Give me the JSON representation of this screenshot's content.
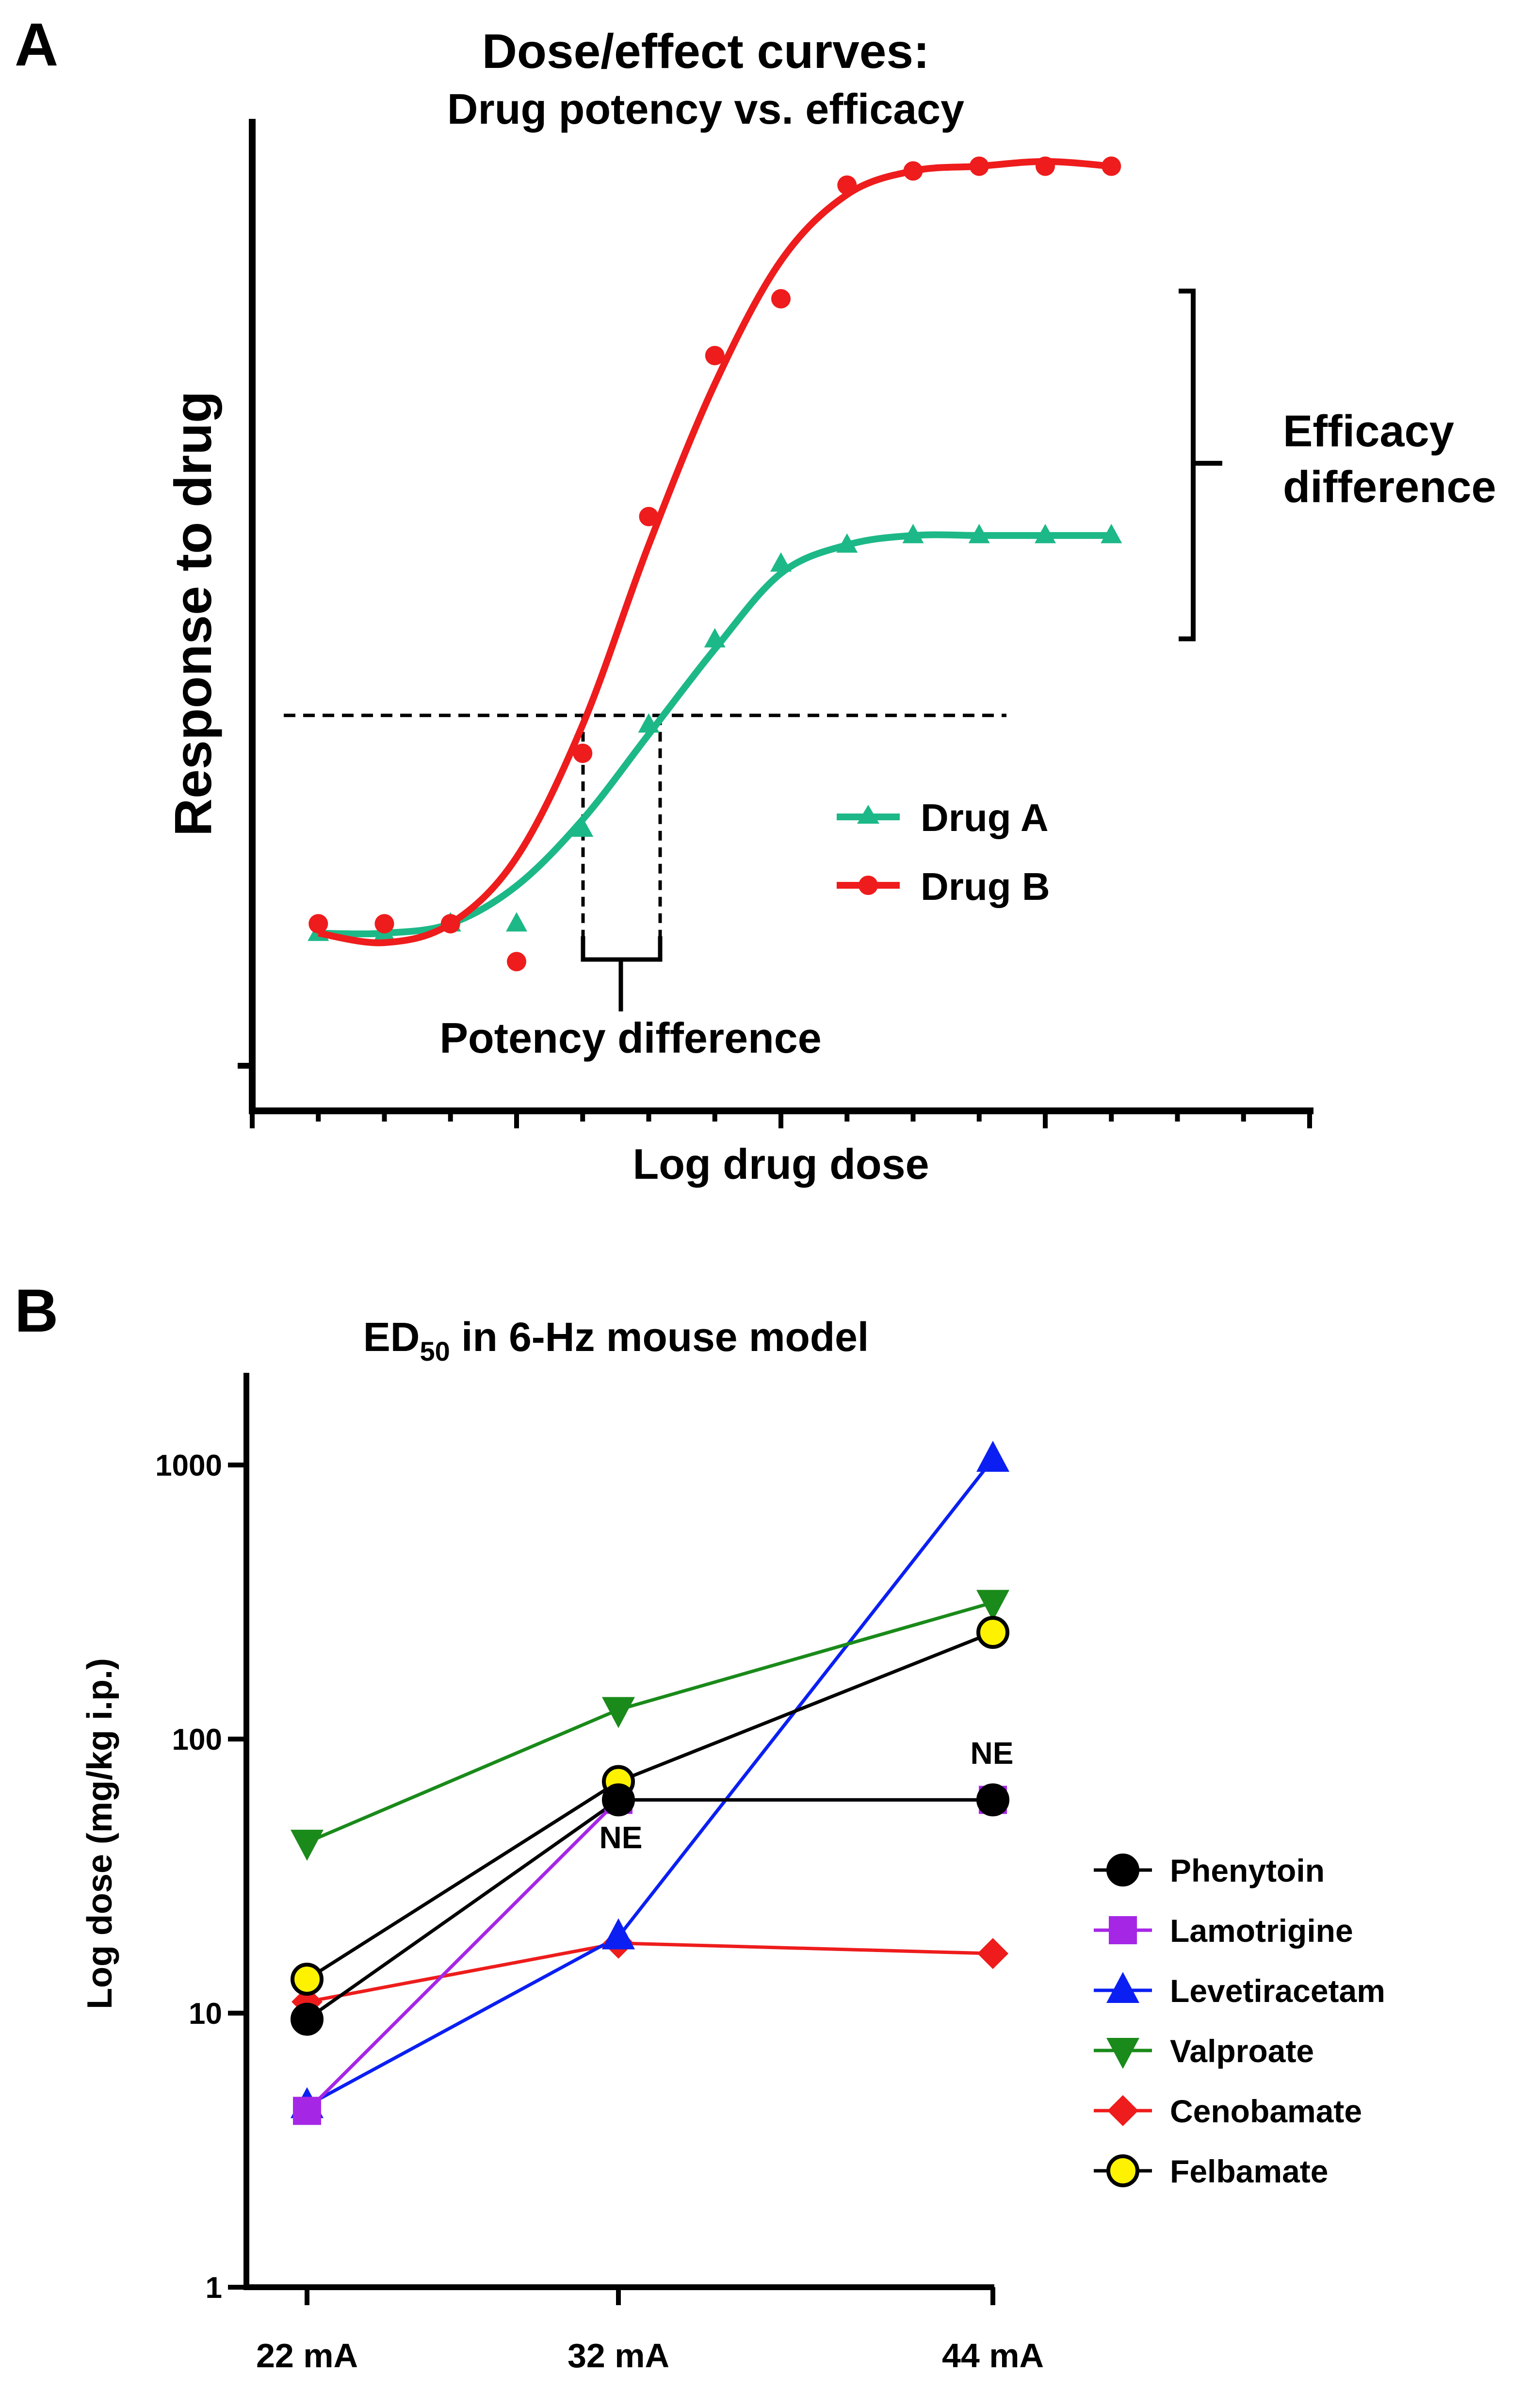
{
  "panel_a": {
    "label": "A",
    "title": "Dose/effect curves:",
    "subtitle": "Drug potency vs. efficacy",
    "annotations": {
      "efficacy_line1": "Efficacy",
      "efficacy_line2": "difference",
      "potency": "Potency difference"
    }
  },
  "panel_b": {
    "label": "B",
    "title_main": "ED",
    "title_sub": "50",
    "title_rest": " in 6-Hz mouse model",
    "ne_label": "NE"
  },
  "chart_data": [
    {
      "type": "line",
      "title": "Dose/effect curves: Drug potency vs. efficacy",
      "xlabel": "Log drug dose",
      "ylabel": "Response to drug",
      "x": [
        1,
        2,
        3,
        4,
        5,
        6,
        7,
        8,
        9,
        10,
        11,
        12,
        13
      ],
      "xlim": [
        0,
        16
      ],
      "ylim": [
        0,
        100
      ],
      "threshold_y": 37,
      "series": [
        {
          "name": "Drug A",
          "color": "#1db887",
          "marker": "triangle",
          "points": [
            14,
            14,
            15,
            15,
            25,
            36,
            45,
            53,
            55,
            56,
            56,
            56,
            56
          ],
          "curve": [
            14,
            14,
            15,
            19,
            26,
            35,
            44,
            52,
            55,
            56,
            56,
            56,
            56
          ]
        },
        {
          "name": "Drug B",
          "color": "#ee1c1c",
          "marker": "circle",
          "points": [
            15,
            15,
            15,
            11,
            33,
            58,
            75,
            81,
            93,
            94.5,
            95,
            95,
            95
          ],
          "curve": [
            14,
            13,
            15,
            22,
            36,
            55,
            72,
            85,
            92,
            94.5,
            95,
            95.5,
            95
          ]
        }
      ]
    },
    {
      "type": "line",
      "title": "ED50 in 6-Hz mouse model",
      "ylabel": "Log dose (mg/kg i.p.)",
      "yscale": "log",
      "ylim": [
        1,
        2000
      ],
      "yticks": [
        "1",
        "10",
        "100",
        "1000"
      ],
      "categories": [
        "22 mA",
        "32 mA",
        "44 mA"
      ],
      "series": [
        {
          "name": "Phenytoin",
          "color": "#000000",
          "marker": "circle",
          "values": [
            9.5,
            60,
            60
          ],
          "ne": [
            false,
            true,
            true
          ]
        },
        {
          "name": "Lamotrigine",
          "color": "#a626e6",
          "marker": "square",
          "values": [
            4.4,
            60,
            60
          ]
        },
        {
          "name": "Levetiracetam",
          "color": "#0b1ff2",
          "marker": "triangle-up",
          "values": [
            4.6,
            19,
            1050
          ]
        },
        {
          "name": "Valproate",
          "color": "#1a8a1a",
          "marker": "triangle-down",
          "values": [
            42,
            128,
            315
          ]
        },
        {
          "name": "Cenobamate",
          "color": "#ee1c1c",
          "marker": "diamond",
          "values": [
            11,
            18,
            16.5
          ]
        },
        {
          "name": "Felbamate",
          "color": "#000000",
          "marker": "circle",
          "fill": "#fff200",
          "values": [
            13.3,
            70,
            245
          ]
        }
      ]
    }
  ]
}
